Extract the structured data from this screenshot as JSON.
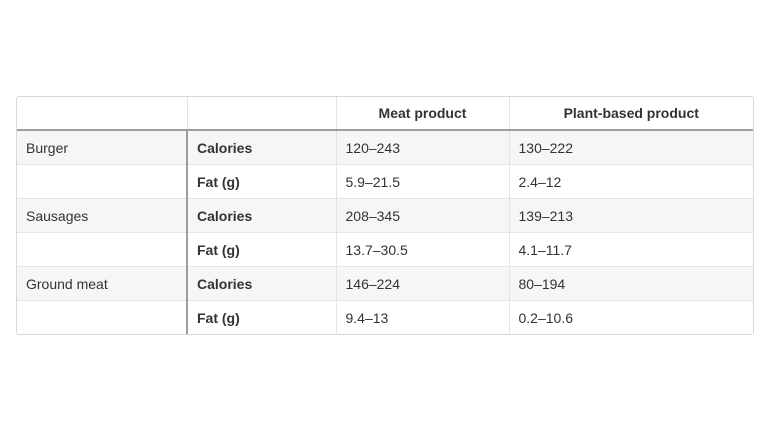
{
  "table": {
    "headers": [
      "",
      "",
      "Meat product",
      "Plant-based product"
    ],
    "rows": [
      {
        "group": "Burger",
        "metric": "Calories",
        "meat": "120–243",
        "plant": "130–222"
      },
      {
        "group": "",
        "metric": "Fat (g)",
        "meat": "5.9–21.5",
        "plant": "2.4–12"
      },
      {
        "group": "Sausages",
        "metric": "Calories",
        "meat": "208–345",
        "plant": "139–213"
      },
      {
        "group": "",
        "metric": "Fat (g)",
        "meat": "13.7–30.5",
        "plant": "4.1–11.7"
      },
      {
        "group": "Ground meat",
        "metric": "Calories",
        "meat": "146–224",
        "plant": "80–194"
      },
      {
        "group": "",
        "metric": "Fat (g)",
        "meat": "9.4–13",
        "plant": "0.2–10.6"
      }
    ]
  }
}
